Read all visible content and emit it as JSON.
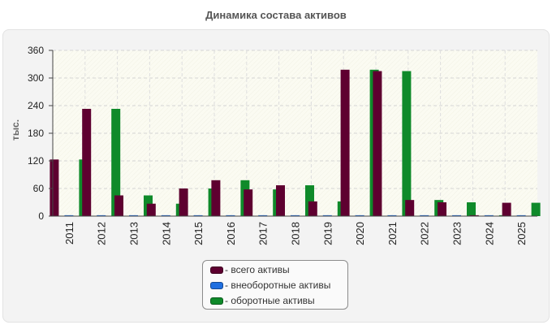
{
  "chart_data": {
    "type": "bar",
    "title": "Динамика состава активов",
    "xlabel": "",
    "ylabel": "тыс.",
    "ylim": [
      0,
      360
    ],
    "yticks": [
      0,
      60,
      120,
      180,
      240,
      300,
      360
    ],
    "grid": true,
    "legend_position": "bottom-center",
    "categories": [
      "2011",
      "2012",
      "2013",
      "2014",
      "2015",
      "2016",
      "2017",
      "2018",
      "2019",
      "2020",
      "2021",
      "2022",
      "2023",
      "2024",
      "2025"
    ],
    "series": [
      {
        "name": "- всего активы",
        "color": "#5e0030",
        "values": [
          123,
          233,
          45,
          27,
          60,
          78,
          58,
          67,
          32,
          318,
          315,
          35,
          30,
          2,
          29
        ]
      },
      {
        "name": "- внеоборотные активы",
        "color": "#1f6fe0",
        "values": [
          2,
          2,
          2,
          2,
          2,
          2,
          2,
          2,
          2,
          2,
          2,
          2,
          2,
          2,
          2
        ]
      },
      {
        "name": "- оборотные активы",
        "color": "#0f8a2a",
        "values": [
          123,
          233,
          45,
          27,
          60,
          78,
          58,
          67,
          32,
          318,
          315,
          35,
          30,
          2,
          29
        ]
      }
    ]
  }
}
